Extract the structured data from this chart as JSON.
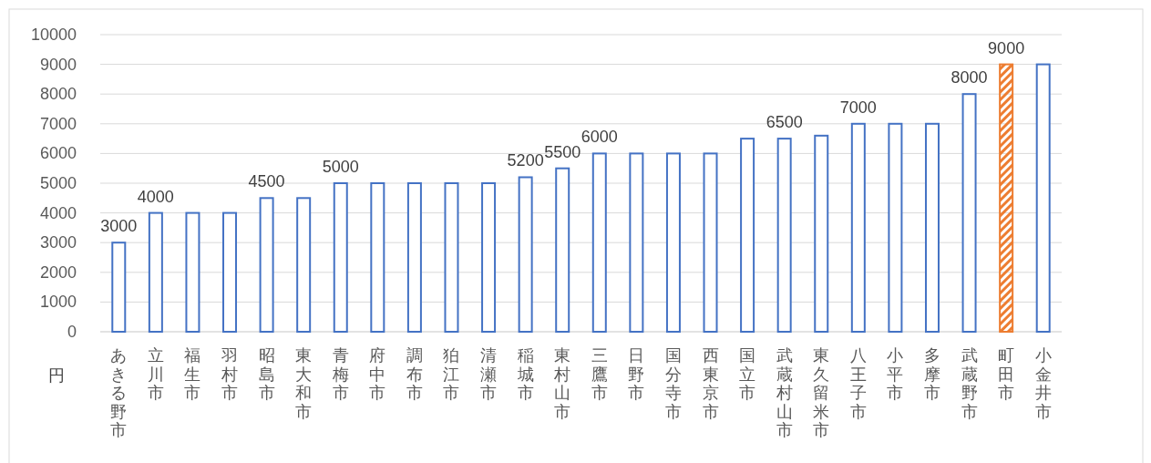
{
  "chart_data": {
    "type": "bar",
    "ylabel": "円",
    "categories": [
      "あきる野市",
      "立川市",
      "福生市",
      "羽村市",
      "昭島市",
      "東大和市",
      "青梅市",
      "府中市",
      "調布市",
      "狛江市",
      "清瀬市",
      "稲城市",
      "東村山市",
      "三鷹市",
      "日野市",
      "国分寺市",
      "西東京市",
      "国立市",
      "武蔵村山市",
      "東久留米市",
      "八王子市",
      "小平市",
      "多摩市",
      "武蔵野市",
      "町田市",
      "小金井市"
    ],
    "values": [
      3000,
      4000,
      4000,
      4000,
      4500,
      4500,
      5000,
      5000,
      5000,
      5000,
      5000,
      5200,
      5500,
      6000,
      6000,
      6000,
      6000,
      6500,
      6500,
      6600,
      7000,
      7000,
      7000,
      8000,
      9000,
      9000
    ],
    "colors": [
      "#4472c4",
      "#4472c4",
      "#4472c4",
      "#4472c4",
      "#4472c4",
      "#4472c4",
      "#4472c4",
      "#4472c4",
      "#4472c4",
      "#4472c4",
      "#4472c4",
      "#4472c4",
      "#4472c4",
      "#4472c4",
      "#4472c4",
      "#4472c4",
      "#4472c4",
      "#4472c4",
      "#4472c4",
      "#4472c4",
      "#4472c4",
      "#4472c4",
      "#4472c4",
      "#4472c4",
      "#ed7d31",
      "#4472c4"
    ],
    "value_labels": [
      "3000",
      "4000",
      null,
      null,
      "4500",
      null,
      "5000",
      null,
      null,
      null,
      null,
      "5200",
      "5500",
      "6000",
      null,
      null,
      null,
      null,
      "6500",
      null,
      "7000",
      null,
      null,
      "8000",
      "9000",
      null
    ],
    "ylim": [
      0,
      10000
    ],
    "yticks": [
      0,
      1000,
      2000,
      3000,
      4000,
      5000,
      6000,
      7000,
      8000,
      9000,
      10000
    ],
    "grid": "y"
  }
}
